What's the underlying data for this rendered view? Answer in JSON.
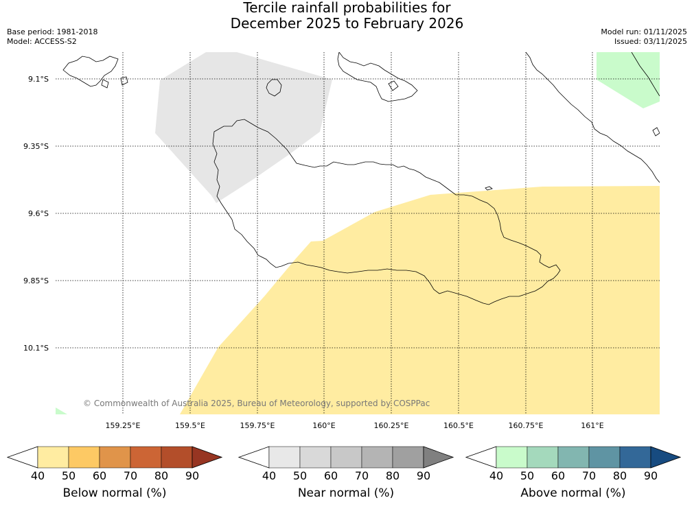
{
  "title": {
    "line1": "Tercile rainfall probabilities for",
    "line2": "December 2025 to February 2026"
  },
  "meta": {
    "base_period": "Base period: 1981-2018",
    "model": "Model: ACCESS-S2",
    "model_run": "Model run: 01/11/2025",
    "issued": "Issued: 03/11/2025"
  },
  "map": {
    "lat_labels": [
      "9.1°S",
      "9.35°S",
      "9.6°S",
      "9.85°S",
      "10.1°S"
    ],
    "lon_labels": [
      "159.25°E",
      "159.5°E",
      "159.75°E",
      "160°E",
      "160.25°E",
      "160.5°E",
      "160.75°E",
      "161°E"
    ],
    "copyright": "© Commonwealth of Australia 2025, Bureau of Meteorology, supported by COSPPac",
    "colors": {
      "near_normal_40": "#e6e6e6",
      "below_normal_40": "#ffeca1",
      "above_normal_40": "#c9fbcb",
      "coastline": "#000000"
    }
  },
  "legends": [
    {
      "label": "Below normal (%)",
      "ticks": [
        "40",
        "50",
        "60",
        "70",
        "80",
        "90"
      ],
      "colors": [
        "#ffeca1",
        "#fdc964",
        "#e0944a",
        "#cc6535",
        "#b34e2a",
        "#973522"
      ]
    },
    {
      "label": "Near normal (%)",
      "ticks": [
        "40",
        "50",
        "60",
        "70",
        "80",
        "90"
      ],
      "colors": [
        "#e8e8e8",
        "#d9d9d9",
        "#c8c8c8",
        "#b4b4b4",
        "#a0a0a0",
        "#808080"
      ]
    },
    {
      "label": "Above normal (%)",
      "ticks": [
        "40",
        "50",
        "60",
        "70",
        "80",
        "90"
      ],
      "colors": [
        "#c9fbcb",
        "#a4d9bc",
        "#82b6b0",
        "#5f94a3",
        "#336898",
        "#174b80"
      ]
    }
  ]
}
